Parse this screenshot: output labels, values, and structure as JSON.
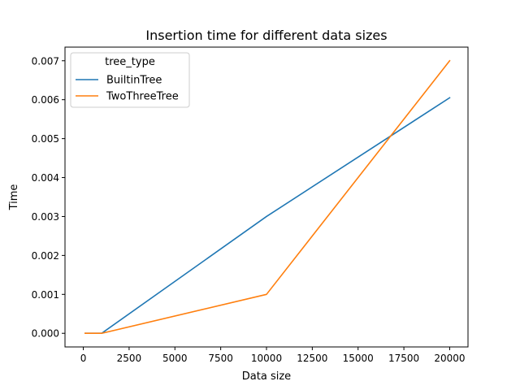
{
  "chart_data": {
    "type": "line",
    "title": "Insertion time for different data sizes",
    "xlabel": "Data size",
    "ylabel": "Time",
    "xlim": [
      -1000,
      21000
    ],
    "ylim": [
      -0.00035,
      0.00735
    ],
    "xticks": [
      0,
      2500,
      5000,
      7500,
      10000,
      12500,
      15000,
      17500,
      20000
    ],
    "yticks": [
      0.0,
      0.001,
      0.002,
      0.003,
      0.004,
      0.005,
      0.006,
      0.007
    ],
    "xtick_labels": [
      "0",
      "2500",
      "5000",
      "7500",
      "10000",
      "12500",
      "15000",
      "17500",
      "20000"
    ],
    "ytick_labels": [
      "0.000",
      "0.001",
      "0.002",
      "0.003",
      "0.004",
      "0.005",
      "0.006",
      "0.007"
    ],
    "grid": false,
    "legend": {
      "title": "tree_type",
      "placement": "upper-left"
    },
    "series": [
      {
        "name": "BuiltinTree",
        "color": "#1f77b4",
        "x": [
          100,
          1000,
          10000,
          20000
        ],
        "y": [
          0.0,
          0.0,
          0.003,
          0.00605
        ]
      },
      {
        "name": "TwoThreeTree",
        "color": "#ff7f0e",
        "x": [
          100,
          1000,
          10000,
          20000
        ],
        "y": [
          0.0,
          0.0,
          0.001,
          0.007
        ]
      }
    ]
  }
}
